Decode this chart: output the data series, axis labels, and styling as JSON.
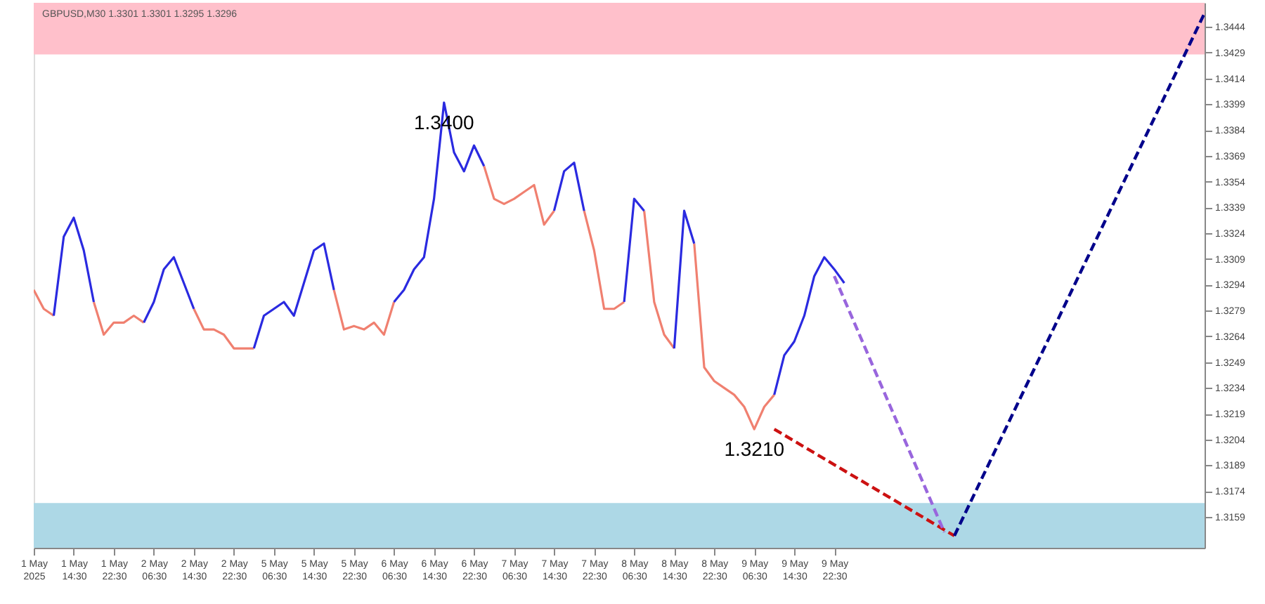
{
  "chart_data": {
    "type": "line",
    "title": "GBPUSD,M30  1.3301 1.3301 1.3295 1.3296",
    "categories": [
      "1 May 2025",
      null,
      null,
      null,
      "1 May 14:30",
      null,
      null,
      null,
      "1 May 22:30",
      null,
      null,
      null,
      "2 May 06:30",
      null,
      null,
      null,
      "2 May 14:30",
      null,
      null,
      null,
      "2 May 22:30",
      null,
      null,
      null,
      "5 May 06:30",
      null,
      null,
      null,
      "5 May 14:30",
      null,
      null,
      null,
      "5 May 22:30",
      null,
      null,
      null,
      "6 May 06:30",
      null,
      null,
      null,
      "6 May 14:30",
      null,
      null,
      null,
      "6 May 22:30",
      null,
      null,
      null,
      "7 May 06:30",
      null,
      null,
      null,
      "7 May 14:30",
      null,
      null,
      null,
      "7 May 22:30",
      null,
      null,
      null,
      "8 May 06:30",
      null,
      null,
      null,
      "8 May 14:30",
      null,
      null,
      null,
      "8 May 22:30",
      null,
      null,
      null,
      "9 May 06:30",
      null,
      null,
      null,
      "9 May 14:30",
      null,
      null,
      null,
      "9 May 22:30",
      null,
      null,
      null,
      null,
      null,
      null,
      null,
      null,
      null,
      null,
      null,
      null,
      null,
      null,
      null,
      null,
      null,
      null,
      null,
      null,
      null,
      null,
      null,
      null,
      null,
      null,
      null,
      null,
      null,
      null,
      null,
      null,
      null,
      null,
      null,
      null,
      null
    ],
    "series": [
      {
        "color": "#f08070",
        "values": [
          1.3291,
          1.328,
          1.3276,
          null,
          null,
          null,
          1.3284,
          1.3265,
          1.3272,
          1.3272,
          1.3276,
          1.3272,
          null,
          null,
          null,
          null,
          1.328,
          1.3268,
          1.3268,
          1.3265,
          1.3257,
          1.3257,
          1.3257,
          null,
          null,
          null,
          null,
          null,
          null,
          null,
          1.3291,
          1.3268,
          1.327,
          1.3268,
          1.3272,
          1.3265,
          1.3284,
          null,
          null,
          null,
          null,
          null,
          null,
          null,
          null,
          1.3363,
          1.3344,
          1.3341,
          1.3344,
          1.3348,
          1.3352,
          1.3329,
          1.3337,
          null,
          null,
          1.3337,
          1.3314,
          1.328,
          1.328,
          1.3284,
          null,
          1.3337,
          1.3284,
          1.3265,
          1.3257,
          null,
          1.3318,
          1.3246,
          1.3238,
          1.3234,
          1.323,
          1.3223,
          1.321,
          1.3223,
          1.323,
          null,
          null,
          null,
          null,
          null,
          null,
          null,
          null,
          null,
          null,
          null,
          null,
          null,
          null,
          null,
          null,
          null,
          null,
          null,
          null,
          null,
          null,
          null,
          null,
          null,
          null,
          null,
          null,
          null,
          null,
          null,
          null,
          null,
          null,
          null,
          null,
          null,
          null,
          null,
          null,
          null,
          null,
          null
        ]
      },
      {
        "color": "#2a2ae0",
        "values": [
          null,
          null,
          1.3276,
          1.3322,
          1.3333,
          1.3314,
          1.3284,
          null,
          null,
          null,
          null,
          1.3272,
          1.3284,
          1.3303,
          1.331,
          1.3295,
          1.328,
          null,
          null,
          null,
          null,
          null,
          1.3257,
          1.3276,
          1.328,
          1.3284,
          1.3276,
          1.3295,
          1.3314,
          1.3318,
          1.3291,
          null,
          null,
          null,
          null,
          null,
          1.3284,
          1.3291,
          1.3303,
          1.331,
          1.3344,
          1.34,
          1.3371,
          1.336,
          1.3375,
          1.3363,
          null,
          null,
          null,
          null,
          null,
          null,
          1.3337,
          1.336,
          1.3365,
          1.3337,
          null,
          null,
          null,
          1.3284,
          1.3344,
          1.3337,
          null,
          null,
          1.3257,
          1.3337,
          1.3318,
          null,
          null,
          null,
          null,
          null,
          null,
          null,
          1.323,
          1.3253,
          1.3261,
          1.3276,
          1.3299,
          1.331,
          1.3303,
          1.3295,
          null,
          null,
          null,
          null,
          null,
          null,
          null,
          null,
          null,
          null,
          null,
          null,
          null,
          null,
          null,
          null,
          null,
          null,
          null,
          null,
          null,
          null,
          null,
          null,
          null,
          null,
          null,
          null,
          null,
          null,
          null,
          null,
          null,
          null,
          null,
          null
        ]
      },
      {
        "color": "#cc1111",
        "line_style": "dashed",
        "values": [
          null,
          null,
          null,
          null,
          null,
          null,
          null,
          null,
          null,
          null,
          null,
          null,
          null,
          null,
          null,
          null,
          null,
          null,
          null,
          null,
          null,
          null,
          null,
          null,
          null,
          null,
          null,
          null,
          null,
          null,
          null,
          null,
          null,
          null,
          null,
          null,
          null,
          null,
          null,
          null,
          null,
          null,
          null,
          null,
          null,
          null,
          null,
          null,
          null,
          null,
          null,
          null,
          null,
          null,
          null,
          null,
          null,
          null,
          null,
          null,
          null,
          null,
          null,
          null,
          null,
          null,
          null,
          null,
          null,
          null,
          null,
          null,
          null,
          null,
          1.321,
          null,
          null,
          null,
          null,
          null,
          null,
          null,
          null,
          null,
          null,
          null,
          null,
          null,
          null,
          null,
          null,
          null,
          1.3148,
          null,
          null,
          null,
          null,
          null,
          null,
          null,
          null,
          null,
          null,
          null,
          null,
          null,
          null,
          null,
          null,
          null,
          null,
          null,
          null,
          null,
          null,
          null,
          null,
          null
        ]
      },
      {
        "color": "#9966dd",
        "line_style": "dashed",
        "values": [
          null,
          null,
          null,
          null,
          null,
          null,
          null,
          null,
          null,
          null,
          null,
          null,
          null,
          null,
          null,
          null,
          null,
          null,
          null,
          null,
          null,
          null,
          null,
          null,
          null,
          null,
          null,
          null,
          null,
          null,
          null,
          null,
          null,
          null,
          null,
          null,
          null,
          null,
          null,
          null,
          null,
          null,
          null,
          null,
          null,
          null,
          null,
          null,
          null,
          null,
          null,
          null,
          null,
          null,
          null,
          null,
          null,
          null,
          null,
          null,
          null,
          null,
          null,
          null,
          null,
          null,
          null,
          null,
          null,
          null,
          null,
          null,
          null,
          null,
          null,
          null,
          null,
          null,
          null,
          null,
          1.3299,
          null,
          null,
          null,
          null,
          null,
          null,
          null,
          null,
          null,
          null,
          1.315,
          null,
          null,
          null,
          null,
          null,
          null,
          null,
          null,
          null,
          null,
          null,
          null,
          null,
          null,
          null,
          null,
          null,
          null,
          null,
          null,
          null,
          null,
          null,
          null,
          null,
          null
        ]
      },
      {
        "color": "#00008b",
        "line_style": "dashed",
        "values": [
          null,
          null,
          null,
          null,
          null,
          null,
          null,
          null,
          null,
          null,
          null,
          null,
          null,
          null,
          null,
          null,
          null,
          null,
          null,
          null,
          null,
          null,
          null,
          null,
          null,
          null,
          null,
          null,
          null,
          null,
          null,
          null,
          null,
          null,
          null,
          null,
          null,
          null,
          null,
          null,
          null,
          null,
          null,
          null,
          null,
          null,
          null,
          null,
          null,
          null,
          null,
          null,
          null,
          null,
          null,
          null,
          null,
          null,
          null,
          null,
          null,
          null,
          null,
          null,
          null,
          null,
          null,
          null,
          null,
          null,
          null,
          null,
          null,
          null,
          null,
          null,
          null,
          null,
          null,
          null,
          null,
          null,
          null,
          null,
          null,
          null,
          null,
          null,
          null,
          null,
          null,
          null,
          1.3148,
          null,
          null,
          null,
          null,
          null,
          null,
          null,
          null,
          null,
          null,
          null,
          null,
          null,
          null,
          null,
          null,
          null,
          null,
          null,
          null,
          null,
          null,
          null,
          null,
          1.3452
        ]
      }
    ],
    "ylim": [
      1.3141,
      1.3458
    ],
    "yticks": [
      1.3159,
      1.3174,
      1.3189,
      1.3204,
      1.3219,
      1.3234,
      1.3249,
      1.3264,
      1.3279,
      1.3294,
      1.3309,
      1.3324,
      1.3339,
      1.3354,
      1.3369,
      1.3384,
      1.3399,
      1.3414,
      1.3429,
      1.3444
    ],
    "bands": [
      {
        "axis": "y",
        "from": 1.3428,
        "to": 1.3458,
        "color": "#ffc0cb"
      },
      {
        "axis": "y",
        "from": 1.3141,
        "to": 1.3167,
        "color": "#add8e6"
      }
    ],
    "annotations": [
      {
        "text": "1.3400",
        "y": 1.34
      },
      {
        "text": "1.3210",
        "y": 1.321
      }
    ],
    "marker": "none",
    "grid": false
  }
}
